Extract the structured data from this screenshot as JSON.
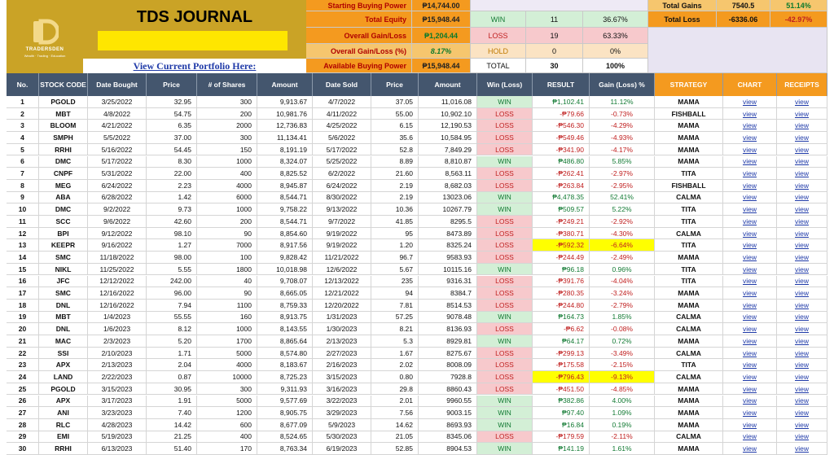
{
  "header": {
    "title": "TDS JOURNAL",
    "portfolio_link": "View Current Portfolio Here:",
    "logo_text": "TRADERSDEN",
    "logo_sub": "Wealth · Trading · Education"
  },
  "summary": {
    "starting_buying_power_label": "Starting Buying Power",
    "starting_buying_power": "₱14,744.00",
    "total_equity_label": "Total Equity",
    "total_equity": "₱15,948.44",
    "overall_gain_label": "Overall Gain/Loss",
    "overall_gain": "₱1,204.44",
    "overall_gain_pct_label": "Overall Gain/Loss (%)",
    "overall_gain_pct": "8.17%",
    "available_buying_power_label": "Available Buying Power",
    "available_buying_power": "₱15,948.44",
    "win_label": "WIN",
    "win_count": "11",
    "win_pct": "36.67%",
    "loss_label": "LOSS",
    "loss_count": "19",
    "loss_pct": "63.33%",
    "hold_label": "HOLD",
    "hold_count": "0",
    "hold_pct": "0%",
    "total_label": "TOTAL",
    "total_count": "30",
    "total_pct": "100%",
    "total_gains_label": "Total Gains",
    "total_gains": "7540.5",
    "total_gains_pct": "51.14%",
    "total_loss_label": "Total Loss",
    "total_loss": "-6336.06",
    "total_loss_pct": "-42.97%"
  },
  "columns": [
    "No.",
    "STOCK CODE",
    "Date Bought",
    "Price",
    "# of Shares",
    "Amount",
    "Date Sold",
    "Price",
    "Amount",
    "Win (Loss)",
    "RESULT",
    "Gain (Loss) %",
    "STRATEGY",
    "CHART",
    "RECEIPTS"
  ],
  "link_label": "view",
  "rows": [
    [
      "1",
      "PGOLD",
      "3/25/2022",
      "32.95",
      "300",
      "9,913.67",
      "4/7/2022",
      "37.05",
      "11,016.08",
      "WIN",
      "₱1,102.41",
      "11.12%",
      "MAMA"
    ],
    [
      "2",
      "MBT",
      "4/8/2022",
      "54.75",
      "200",
      "10,981.76",
      "4/11/2022",
      "55.00",
      "10,902.10",
      "LOSS",
      "-₱79.66",
      "-0.73%",
      "FISHBALL"
    ],
    [
      "3",
      "BLOOM",
      "4/21/2022",
      "6.35",
      "2000",
      "12,736.83",
      "4/25/2022",
      "6.15",
      "12,190.53",
      "LOSS",
      "-₱546.30",
      "-4.29%",
      "MAMA"
    ],
    [
      "4",
      "SMPH",
      "5/5/2022",
      "37.00",
      "300",
      "11,134.41",
      "5/6/2022",
      "35.6",
      "10,584.95",
      "LOSS",
      "-₱549.46",
      "-4.93%",
      "MAMA"
    ],
    [
      "5",
      "RRHI",
      "5/16/2022",
      "54.45",
      "150",
      "8,191.19",
      "5/17/2022",
      "52.8",
      "7,849.29",
      "LOSS",
      "-₱341.90",
      "-4.17%",
      "MAMA"
    ],
    [
      "6",
      "DMC",
      "5/17/2022",
      "8.30",
      "1000",
      "8,324.07",
      "5/25/2022",
      "8.89",
      "8,810.87",
      "WIN",
      "₱486.80",
      "5.85%",
      "MAMA"
    ],
    [
      "7",
      "CNPF",
      "5/31/2022",
      "22.00",
      "400",
      "8,825.52",
      "6/2/2022",
      "21.60",
      "8,563.11",
      "LOSS",
      "-₱262.41",
      "-2.97%",
      "TITA"
    ],
    [
      "8",
      "MEG",
      "6/24/2022",
      "2.23",
      "4000",
      "8,945.87",
      "6/24/2022",
      "2.19",
      "8,682.03",
      "LOSS",
      "-₱263.84",
      "-2.95%",
      "FISHBALL"
    ],
    [
      "9",
      "ABA",
      "6/28/2022",
      "1.42",
      "6000",
      "8,544.71",
      "8/30/2022",
      "2.19",
      "13023.06",
      "WIN",
      "₱4,478.35",
      "52.41%",
      "CALMA"
    ],
    [
      "10",
      "DMC",
      "9/2/2022",
      "9.73",
      "1000",
      "9,758.22",
      "9/13/2022",
      "10.36",
      "10267.79",
      "WIN",
      "₱509.57",
      "5.22%",
      "TITA"
    ],
    [
      "11",
      "SCC",
      "9/6/2022",
      "42.60",
      "200",
      "8,544.71",
      "9/7/2022",
      "41.85",
      "8295.5",
      "LOSS",
      "-₱249.21",
      "-2.92%",
      "TITA"
    ],
    [
      "12",
      "BPI",
      "9/12/2022",
      "98.10",
      "90",
      "8,854.60",
      "9/19/2022",
      "95",
      "8473.89",
      "LOSS",
      "-₱380.71",
      "-4.30%",
      "CALMA"
    ],
    [
      "13",
      "KEEPR",
      "9/16/2022",
      "1.27",
      "7000",
      "8,917.56",
      "9/19/2022",
      "1.20",
      "8325.24",
      "LOSS",
      "-₱592.32",
      "-6.64%",
      "TITA"
    ],
    [
      "14",
      "SMC",
      "11/18/2022",
      "98.00",
      "100",
      "9,828.42",
      "11/21/2022",
      "96.7",
      "9583.93",
      "LOSS",
      "-₱244.49",
      "-2.49%",
      "MAMA"
    ],
    [
      "15",
      "NIKL",
      "11/25/2022",
      "5.55",
      "1800",
      "10,018.98",
      "12/6/2022",
      "5.67",
      "10115.16",
      "WIN",
      "₱96.18",
      "0.96%",
      "TITA"
    ],
    [
      "16",
      "JFC",
      "12/12/2022",
      "242.00",
      "40",
      "9,708.07",
      "12/13/2022",
      "235",
      "9316.31",
      "LOSS",
      "-₱391.76",
      "-4.04%",
      "TITA"
    ],
    [
      "17",
      "SMC",
      "12/16/2022",
      "96.00",
      "90",
      "8,665.05",
      "12/21/2022",
      "94",
      "8384.7",
      "LOSS",
      "-₱280.35",
      "-3.24%",
      "MAMA"
    ],
    [
      "18",
      "DNL",
      "12/16/2022",
      "7.94",
      "1100",
      "8,759.33",
      "12/20/2022",
      "7.81",
      "8514.53",
      "LOSS",
      "-₱244.80",
      "-2.79%",
      "MAMA"
    ],
    [
      "19",
      "MBT",
      "1/4/2023",
      "55.55",
      "160",
      "8,913.75",
      "1/31/2023",
      "57.25",
      "9078.48",
      "WIN",
      "₱164.73",
      "1.85%",
      "CALMA"
    ],
    [
      "20",
      "DNL",
      "1/6/2023",
      "8.12",
      "1000",
      "8,143.55",
      "1/30/2023",
      "8.21",
      "8136.93",
      "LOSS",
      "-₱6.62",
      "-0.08%",
      "CALMA"
    ],
    [
      "21",
      "MAC",
      "2/3/2023",
      "5.20",
      "1700",
      "8,865.64",
      "2/13/2023",
      "5.3",
      "8929.81",
      "WIN",
      "₱64.17",
      "0.72%",
      "MAMA"
    ],
    [
      "22",
      "SSI",
      "2/10/2023",
      "1.71",
      "5000",
      "8,574.80",
      "2/27/2023",
      "1.67",
      "8275.67",
      "LOSS",
      "-₱299.13",
      "-3.49%",
      "CALMA"
    ],
    [
      "23",
      "APX",
      "2/13/2023",
      "2.04",
      "4000",
      "8,183.67",
      "2/16/2023",
      "2.02",
      "8008.09",
      "LOSS",
      "-₱175.58",
      "-2.15%",
      "TITA"
    ],
    [
      "24",
      "LAND",
      "2/22/2023",
      "0.87",
      "10000",
      "8,725.23",
      "3/15/2023",
      "0.80",
      "7928.8",
      "LOSS",
      "-₱796.43",
      "-9.13%",
      "CALMA"
    ],
    [
      "25",
      "PGOLD",
      "3/15/2023",
      "30.95",
      "300",
      "9,311.93",
      "3/16/2023",
      "29.8",
      "8860.43",
      "LOSS",
      "-₱451.50",
      "-4.85%",
      "MAMA"
    ],
    [
      "26",
      "APX",
      "3/17/2023",
      "1.91",
      "5000",
      "9,577.69",
      "3/22/2023",
      "2.01",
      "9960.55",
      "WIN",
      "₱382.86",
      "4.00%",
      "MAMA"
    ],
    [
      "27",
      "ANI",
      "3/23/2023",
      "7.40",
      "1200",
      "8,905.75",
      "3/29/2023",
      "7.56",
      "9003.15",
      "WIN",
      "₱97.40",
      "1.09%",
      "MAMA"
    ],
    [
      "28",
      "RLC",
      "4/28/2023",
      "14.42",
      "600",
      "8,677.09",
      "5/9/2023",
      "14.62",
      "8693.93",
      "WIN",
      "₱16.84",
      "0.19%",
      "MAMA"
    ],
    [
      "29",
      "EMI",
      "5/19/2023",
      "21.25",
      "400",
      "8,524.65",
      "5/30/2023",
      "21.05",
      "8345.06",
      "LOSS",
      "-₱179.59",
      "-2.11%",
      "CALMA"
    ],
    [
      "30",
      "RRHI",
      "6/13/2023",
      "51.40",
      "170",
      "8,763.34",
      "6/19/2023",
      "52.85",
      "8904.53",
      "WIN",
      "₱141.19",
      "1.61%",
      "MAMA"
    ]
  ],
  "colors": {
    "win_bg": "#d3efd6",
    "loss_bg": "#f7c9cc",
    "header_bg": "#44566e",
    "accent": "#f49a1f",
    "brand": "#caa326"
  }
}
